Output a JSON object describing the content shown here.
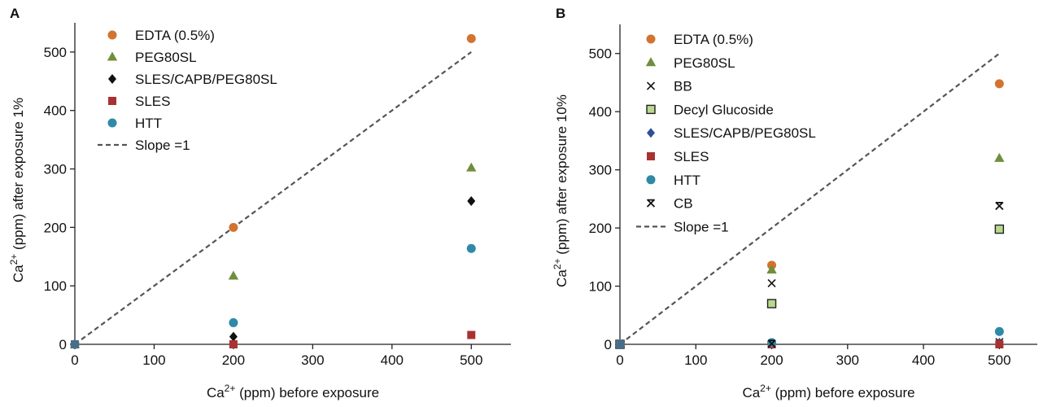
{
  "panels": [
    {
      "panel_label": "A",
      "xlabel": {
        "base": "Ca",
        "sup": "2+",
        "rest": " (ppm) before exposure"
      },
      "ylabel": {
        "base": "Ca",
        "sup": "2+",
        "rest": " (ppm) after exposure 1%"
      }
    },
    {
      "panel_label": "B",
      "xlabel": {
        "base": "Ca",
        "sup": "2+",
        "rest": " (ppm) before exposure"
      },
      "ylabel": {
        "base": "Ca",
        "sup": "2+",
        "rest": " (ppm) after exposure 10%"
      }
    }
  ],
  "chart_data": [
    {
      "type": "scatter",
      "panel": "A",
      "xlim": [
        0,
        550
      ],
      "ylim": [
        0,
        550
      ],
      "xticks": [
        0,
        100,
        200,
        300,
        400,
        500
      ],
      "yticks": [
        0,
        100,
        200,
        300,
        400,
        500
      ],
      "tick_labels_x": [
        "0",
        "100",
        "200",
        "300",
        "400",
        "500"
      ],
      "tick_labels_y": [
        "0",
        "100",
        "200",
        "300",
        "400",
        "500"
      ],
      "grid": false,
      "legend_position": "top-left",
      "reference_line": {
        "name": "Slope =1",
        "slope": 1,
        "x": [
          0,
          500
        ],
        "color": "#555555"
      },
      "series": [
        {
          "name": "EDTA (0.5%)",
          "marker": "circle",
          "color": "#d2732f",
          "points": [
            [
              0,
              0
            ],
            [
              200,
              200
            ],
            [
              500,
              523
            ]
          ]
        },
        {
          "name": "PEG80SL",
          "marker": "triangle",
          "color": "#6e8f3c",
          "points": [
            [
              0,
              0
            ],
            [
              200,
              117
            ],
            [
              500,
              302
            ]
          ]
        },
        {
          "name": "SLES/CAPB/PEG80SL",
          "marker": "diamond",
          "color": "#111111",
          "points": [
            [
              0,
              0
            ],
            [
              200,
              13
            ],
            [
              500,
              245
            ]
          ]
        },
        {
          "name": "SLES",
          "marker": "square",
          "color": "#a83232",
          "points": [
            [
              0,
              0
            ],
            [
              200,
              0
            ],
            [
              500,
              16
            ]
          ]
        },
        {
          "name": "HTT",
          "marker": "circle",
          "color": "#2e8aa6",
          "points": [
            [
              0,
              0
            ],
            [
              200,
              37
            ],
            [
              500,
              164
            ]
          ]
        }
      ]
    },
    {
      "type": "scatter",
      "panel": "B",
      "xlim": [
        0,
        550
      ],
      "ylim": [
        0,
        550
      ],
      "xticks": [
        0,
        100,
        200,
        300,
        400,
        500
      ],
      "yticks": [
        0,
        100,
        200,
        300,
        400,
        500
      ],
      "tick_labels_x": [
        "0",
        "100",
        "200",
        "300",
        "400",
        "500"
      ],
      "tick_labels_y": [
        "0",
        "100",
        "200",
        "300",
        "400",
        "500"
      ],
      "grid": false,
      "legend_position": "top-left",
      "reference_line": {
        "name": "Slope =1",
        "slope": 1,
        "x": [
          0,
          500
        ],
        "color": "#555555"
      },
      "series": [
        {
          "name": "EDTA (0.5%)",
          "marker": "circle",
          "color": "#d2732f",
          "points": [
            [
              0,
              0
            ],
            [
              200,
              136
            ],
            [
              500,
              448
            ]
          ]
        },
        {
          "name": "PEG80SL",
          "marker": "triangle",
          "color": "#6e8f3c",
          "points": [
            [
              0,
              0
            ],
            [
              200,
              128
            ],
            [
              500,
              320
            ]
          ]
        },
        {
          "name": "BB",
          "marker": "x",
          "color": "#111111",
          "points": [
            [
              0,
              0
            ],
            [
              200,
              105
            ],
            [
              500,
              4
            ]
          ]
        },
        {
          "name": "Decyl Glucoside",
          "marker": "square-open",
          "color": "#b9d98c",
          "points": [
            [
              0,
              0
            ],
            [
              200,
              70
            ],
            [
              500,
              198
            ]
          ]
        },
        {
          "name": "SLES/CAPB/PEG80SL",
          "marker": "diamond",
          "color": "#2f4f9a",
          "points": [
            [
              0,
              0
            ],
            [
              200,
              2
            ],
            [
              500,
              3
            ]
          ]
        },
        {
          "name": "SLES",
          "marker": "square",
          "color": "#a83232",
          "points": [
            [
              0,
              0
            ],
            [
              200,
              0
            ],
            [
              500,
              0
            ]
          ]
        },
        {
          "name": "HTT",
          "marker": "circle",
          "color": "#2e8aa6",
          "points": [
            [
              0,
              0
            ],
            [
              200,
              3
            ],
            [
              500,
              22
            ]
          ]
        },
        {
          "name": "CB",
          "marker": "star-x",
          "color": "#111111",
          "points": [
            [
              0,
              0
            ],
            [
              200,
              1
            ],
            [
              500,
              238
            ]
          ]
        }
      ]
    }
  ]
}
